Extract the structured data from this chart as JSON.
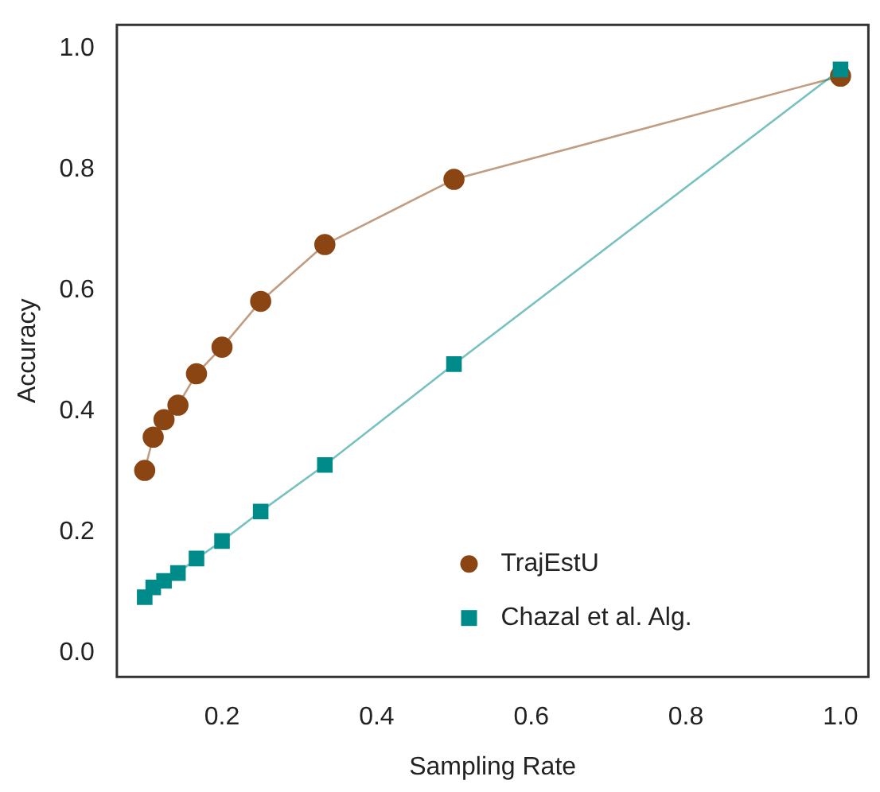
{
  "chart_data": {
    "type": "line",
    "xlabel": "Sampling Rate",
    "ylabel": "Accuracy",
    "x": [
      0.1,
      0.111,
      0.125,
      0.143,
      0.167,
      0.2,
      0.25,
      0.333,
      0.5,
      1.0
    ],
    "series": [
      {
        "name": "TrajEstU",
        "color": "#8b4513",
        "marker": "circle",
        "values": [
          0.302,
          0.357,
          0.386,
          0.41,
          0.462,
          0.506,
          0.582,
          0.676,
          0.784,
          0.955
        ]
      },
      {
        "name": "Chazal et al. Alg.",
        "color": "#008b8b",
        "marker": "square",
        "values": [
          0.092,
          0.108,
          0.119,
          0.132,
          0.156,
          0.185,
          0.234,
          0.311,
          0.478,
          0.966
        ]
      }
    ],
    "xlim": [
      0.064,
      1.036
    ],
    "ylim": [
      -0.04,
      1.04
    ],
    "xticks": [
      {
        "value": 0.2,
        "label": "0.2"
      },
      {
        "value": 0.4,
        "label": "0.4"
      },
      {
        "value": 0.6,
        "label": "0.6"
      },
      {
        "value": 0.8,
        "label": "0.8"
      },
      {
        "value": 1.0,
        "label": "1.0"
      }
    ],
    "yticks": [
      {
        "value": 0,
        "label": "0.0"
      },
      {
        "value": 0.2,
        "label": "0.2"
      },
      {
        "value": 0.4,
        "label": "0.4"
      },
      {
        "value": 0.6,
        "label": "0.6"
      },
      {
        "value": 0.8,
        "label": "0.8"
      },
      {
        "value": 1.0,
        "label": "1.0"
      }
    ],
    "grid": false,
    "legend": "bottom right"
  }
}
